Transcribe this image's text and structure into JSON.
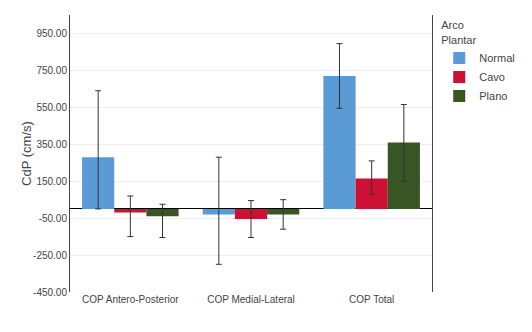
{
  "chart_data": {
    "type": "bar",
    "categories": [
      "COP Antero-Posterior",
      "COP Medial-Lateral",
      "COP Total"
    ],
    "series": [
      {
        "name": "Normal",
        "color": "#5B9BD5",
        "values": [
          280,
          -30,
          720
        ],
        "error_low": [
          280,
          270,
          175
        ],
        "error_high": [
          360,
          310,
          175
        ]
      },
      {
        "name": "Cavo",
        "color": "#CC1133",
        "values": [
          -20,
          -55,
          165
        ],
        "error_low": [
          130,
          100,
          85
        ],
        "error_high": [
          90,
          100,
          95
        ]
      },
      {
        "name": "Plano",
        "color": "#375623",
        "values": [
          -40,
          -30,
          360
        ],
        "error_low": [
          115,
          80,
          210
        ],
        "error_high": [
          65,
          80,
          205
        ]
      }
    ],
    "ylabel": "CdP (cm/s)",
    "legend_title": "Arco\nPlantar",
    "ylim": [
      -450,
      1050
    ],
    "yticks": [
      {
        "value": -450,
        "label": "-450.00"
      },
      {
        "value": -250,
        "label": "-250.00"
      },
      {
        "value": -50,
        "label": "-50.00"
      },
      {
        "value": 150,
        "label": "150.00"
      },
      {
        "value": 350,
        "label": "350.00"
      },
      {
        "value": 550,
        "label": "550.00"
      },
      {
        "value": 750,
        "label": "750.00"
      },
      {
        "value": 950,
        "label": "950.00"
      }
    ],
    "grid": true,
    "legend": "upper right"
  }
}
